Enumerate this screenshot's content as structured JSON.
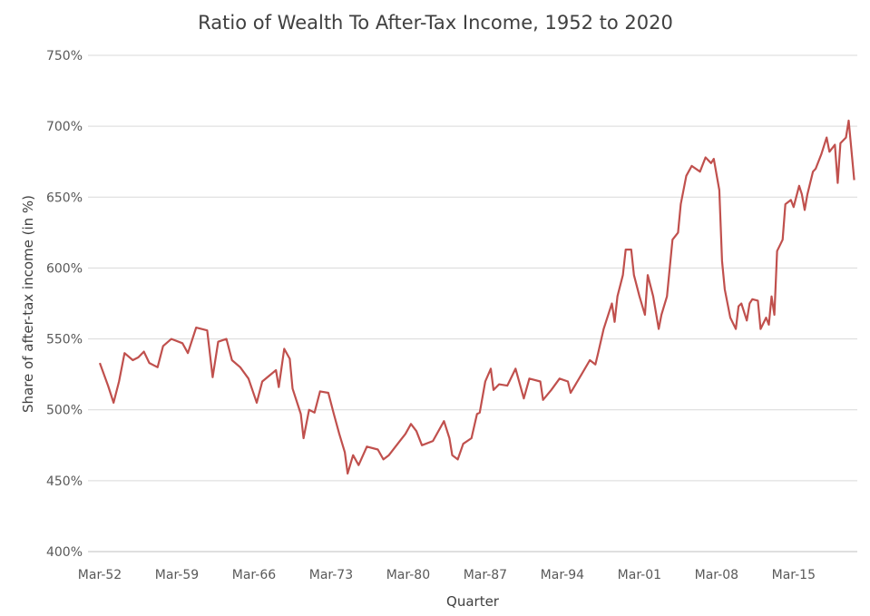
{
  "chart_data": {
    "type": "line",
    "title": "Ratio of Wealth To After-Tax Income, 1952 to 2020",
    "xlabel": "Quarter",
    "ylabel": "Share of after-tax income (in %)",
    "ylim": [
      400,
      750
    ],
    "yticks": [
      "400%",
      "450%",
      "500%",
      "550%",
      "600%",
      "650%",
      "700%",
      "750%"
    ],
    "xticks": [
      "Mar-52",
      "Mar-59",
      "Mar-66",
      "Mar-73",
      "Mar-80",
      "Mar-87",
      "Mar-94",
      "Mar-01",
      "Mar-08",
      "Mar-15"
    ],
    "grid": "horizontal",
    "legend": "none",
    "line_color": "#c0504d",
    "series": [
      {
        "points": [
          [
            "1952-Q1",
            533
          ],
          [
            "1952-Q4",
            517
          ],
          [
            "1953-Q2",
            505
          ],
          [
            "1953-Q4",
            520
          ],
          [
            "1954-Q2",
            540
          ],
          [
            "1955-Q1",
            535
          ],
          [
            "1955-Q3",
            537
          ],
          [
            "1956-Q1",
            541
          ],
          [
            "1956-Q3",
            533
          ],
          [
            "1957-Q2",
            530
          ],
          [
            "1957-Q4",
            545
          ],
          [
            "1958-Q3",
            550
          ],
          [
            "1959-Q3",
            547
          ],
          [
            "1960-Q1",
            540
          ],
          [
            "1960-Q4",
            558
          ],
          [
            "1961-Q4",
            556
          ],
          [
            "1962-Q2",
            523
          ],
          [
            "1962-Q4",
            548
          ],
          [
            "1963-Q3",
            550
          ],
          [
            "1964-Q1",
            535
          ],
          [
            "1964-Q4",
            530
          ],
          [
            "1965-Q3",
            522
          ],
          [
            "1966-Q2",
            505
          ],
          [
            "1966-Q4",
            520
          ],
          [
            "1968-Q1",
            528
          ],
          [
            "1968-Q2",
            516
          ],
          [
            "1968-Q4",
            543
          ],
          [
            "1969-Q2",
            536
          ],
          [
            "1969-Q3",
            515
          ],
          [
            "1970-Q2",
            497
          ],
          [
            "1970-Q3",
            480
          ],
          [
            "1971-Q1",
            500
          ],
          [
            "1971-Q3",
            498
          ],
          [
            "1972-Q1",
            513
          ],
          [
            "1972-Q4",
            512
          ],
          [
            "1973-Q2",
            497
          ],
          [
            "1973-Q4",
            483
          ],
          [
            "1974-Q2",
            470
          ],
          [
            "1974-Q3",
            455
          ],
          [
            "1975-Q1",
            468
          ],
          [
            "1975-Q3",
            461
          ],
          [
            "1976-Q2",
            474
          ],
          [
            "1977-Q2",
            472
          ],
          [
            "1977-Q4",
            465
          ],
          [
            "1978-Q2",
            468
          ],
          [
            "1979-Q2",
            478
          ],
          [
            "1979-Q4",
            483
          ],
          [
            "1980-Q2",
            490
          ],
          [
            "1980-Q4",
            485
          ],
          [
            "1981-Q2",
            475
          ],
          [
            "1982-Q2",
            478
          ],
          [
            "1983-Q2",
            492
          ],
          [
            "1983-Q4",
            480
          ],
          [
            "1984-Q1",
            468
          ],
          [
            "1984-Q3",
            465
          ],
          [
            "1985-Q1",
            476
          ],
          [
            "1985-Q4",
            480
          ],
          [
            "1986-Q2",
            497
          ],
          [
            "1986-Q3",
            498
          ],
          [
            "1987-Q1",
            520
          ],
          [
            "1987-Q3",
            529
          ],
          [
            "1987-Q4",
            514
          ],
          [
            "1988-Q2",
            518
          ],
          [
            "1989-Q1",
            517
          ],
          [
            "1989-Q4",
            529
          ],
          [
            "1990-Q3",
            508
          ],
          [
            "1991-Q1",
            522
          ],
          [
            "1992-Q1",
            520
          ],
          [
            "1992-Q2",
            507
          ],
          [
            "1993-Q1",
            514
          ],
          [
            "1993-Q4",
            522
          ],
          [
            "1994-Q3",
            520
          ],
          [
            "1994-Q4",
            512
          ],
          [
            "1995-Q4",
            525
          ],
          [
            "1996-Q3",
            535
          ],
          [
            "1997-Q1",
            532
          ],
          [
            "1997-Q2",
            540
          ],
          [
            "1997-Q4",
            557
          ],
          [
            "1998-Q1",
            563
          ],
          [
            "1998-Q3",
            575
          ],
          [
            "1998-Q4",
            562
          ],
          [
            "1999-Q1",
            580
          ],
          [
            "1999-Q3",
            595
          ],
          [
            "1999-Q4",
            613
          ],
          [
            "2000-Q2",
            613
          ],
          [
            "2000-Q3",
            595
          ],
          [
            "2001-Q1",
            580
          ],
          [
            "2001-Q3",
            567
          ],
          [
            "2001-Q4",
            595
          ],
          [
            "2002-Q2",
            580
          ],
          [
            "2002-Q4",
            557
          ],
          [
            "2003-Q1",
            567
          ],
          [
            "2003-Q3",
            580
          ],
          [
            "2004-Q1",
            620
          ],
          [
            "2004-Q3",
            625
          ],
          [
            "2004-Q4",
            645
          ],
          [
            "2005-Q2",
            665
          ],
          [
            "2005-Q4",
            672
          ],
          [
            "2006-Q3",
            668
          ],
          [
            "2007-Q1",
            678
          ],
          [
            "2007-Q3",
            674
          ],
          [
            "2007-Q4",
            677
          ],
          [
            "2008-Q2",
            655
          ],
          [
            "2008-Q3",
            605
          ],
          [
            "2008-Q4",
            585
          ],
          [
            "2009-Q2",
            565
          ],
          [
            "2009-Q4",
            557
          ],
          [
            "2010-Q1",
            573
          ],
          [
            "2010-Q2",
            575
          ],
          [
            "2010-Q4",
            563
          ],
          [
            "2011-Q1",
            575
          ],
          [
            "2011-Q2",
            578
          ],
          [
            "2011-Q4",
            577
          ],
          [
            "2012-Q1",
            557
          ],
          [
            "2012-Q3",
            565
          ],
          [
            "2012-Q4",
            560
          ],
          [
            "2013-Q1",
            580
          ],
          [
            "2013-Q2",
            567
          ],
          [
            "2013-Q3",
            612
          ],
          [
            "2014-Q1",
            620
          ],
          [
            "2014-Q2",
            645
          ],
          [
            "2014-Q4",
            648
          ],
          [
            "2015-Q1",
            643
          ],
          [
            "2015-Q3",
            658
          ],
          [
            "2015-Q4",
            652
          ],
          [
            "2016-Q1",
            641
          ],
          [
            "2016-Q2",
            652
          ],
          [
            "2016-Q4",
            668
          ],
          [
            "2017-Q1",
            670
          ],
          [
            "2017-Q3",
            680
          ],
          [
            "2018-Q1",
            692
          ],
          [
            "2018-Q2",
            682
          ],
          [
            "2018-Q4",
            687
          ],
          [
            "2019-Q1",
            660
          ],
          [
            "2019-Q2",
            688
          ],
          [
            "2019-Q4",
            692
          ],
          [
            "2020-Q1",
            704
          ],
          [
            "2020-Q3",
            662
          ]
        ]
      }
    ]
  }
}
